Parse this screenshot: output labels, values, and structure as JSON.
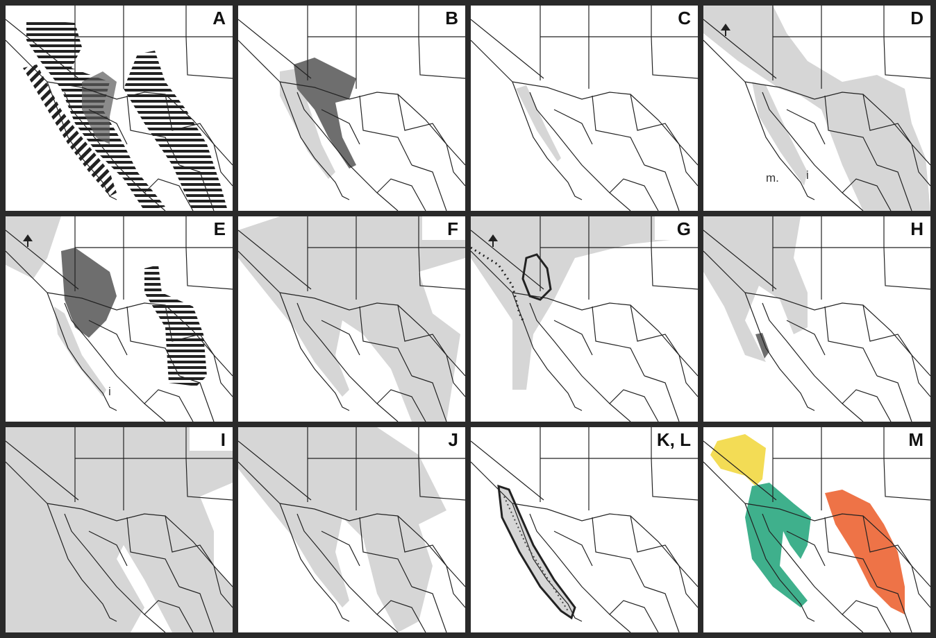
{
  "panels": [
    {
      "label": "A"
    },
    {
      "label": "B"
    },
    {
      "label": "C"
    },
    {
      "label": "D",
      "notes": [
        "m.",
        "i"
      ]
    },
    {
      "label": "E",
      "notes": [
        "i"
      ]
    },
    {
      "label": "F"
    },
    {
      "label": "G"
    },
    {
      "label": "H"
    },
    {
      "label": "I"
    },
    {
      "label": "J"
    },
    {
      "label": "K, L"
    },
    {
      "label": "M"
    }
  ]
}
